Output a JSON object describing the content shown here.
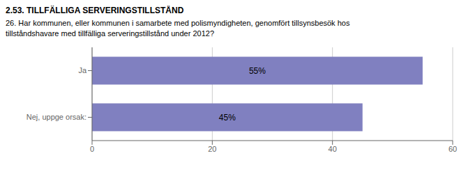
{
  "chart_data": {
    "type": "bar",
    "title": "2.53. TILLFÄLLIGA SERVERINGSTILLSTÅND",
    "subtitle": "26. Har kommunen, eller kommunen i samarbete med polismyndigheten, genomfört tillsynsbesök hos\ntillståndshavare med tillfälliga serveringstillstånd under 2012?",
    "categories": [
      "Nej, uppge orsak:",
      "Ja"
    ],
    "values": [
      45,
      55
    ],
    "value_labels": [
      "45%",
      "55%"
    ],
    "data_labels": true,
    "color": "#8080c0",
    "orientation": "horizontal",
    "xlim": [
      0,
      60
    ],
    "xticks": [
      0,
      20,
      40,
      60
    ],
    "grid": true
  }
}
